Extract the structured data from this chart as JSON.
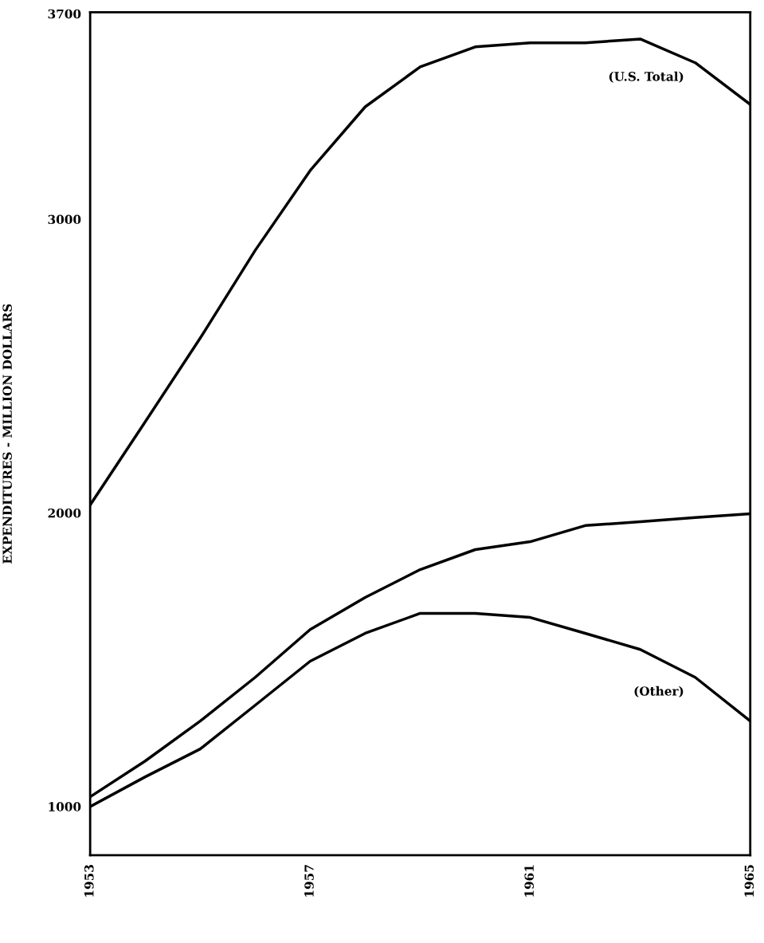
{
  "chart_data": {
    "type": "line",
    "ylabel": "EXPENDITURES - MILLION DOLLARS",
    "x": [
      1953,
      1954,
      1955,
      1956,
      1957,
      1958,
      1959,
      1960,
      1961,
      1962,
      1963,
      1964,
      1965
    ],
    "series": [
      {
        "name": "(U.S. Total)",
        "color": "#000000",
        "values": [
          2027,
          2310,
          2595,
          2894,
          3166,
          3383,
          3519,
          3587,
          3601,
          3601,
          3614,
          3533,
          3391
        ]
      },
      {
        "color": "#000000",
        "values": [
          1033,
          1155,
          1291,
          1440,
          1603,
          1712,
          1807,
          1875,
          1902,
          1957,
          1970,
          1984,
          1997
        ]
      },
      {
        "name": "(Other)",
        "color": "#000000",
        "values": [
          1000,
          1101,
          1196,
          1345,
          1495,
          1590,
          1658,
          1658,
          1644,
          1590,
          1535,
          1440,
          1291
        ]
      }
    ],
    "xlim": [
      1953,
      1965
    ],
    "ylim": [
      834,
      3705
    ],
    "xticks": [
      1953,
      1957,
      1961,
      1965
    ],
    "yticks": [
      1000,
      2000,
      3000,
      3700
    ],
    "grid": false,
    "legend": false,
    "marker": "none",
    "line_style": "solid"
  }
}
